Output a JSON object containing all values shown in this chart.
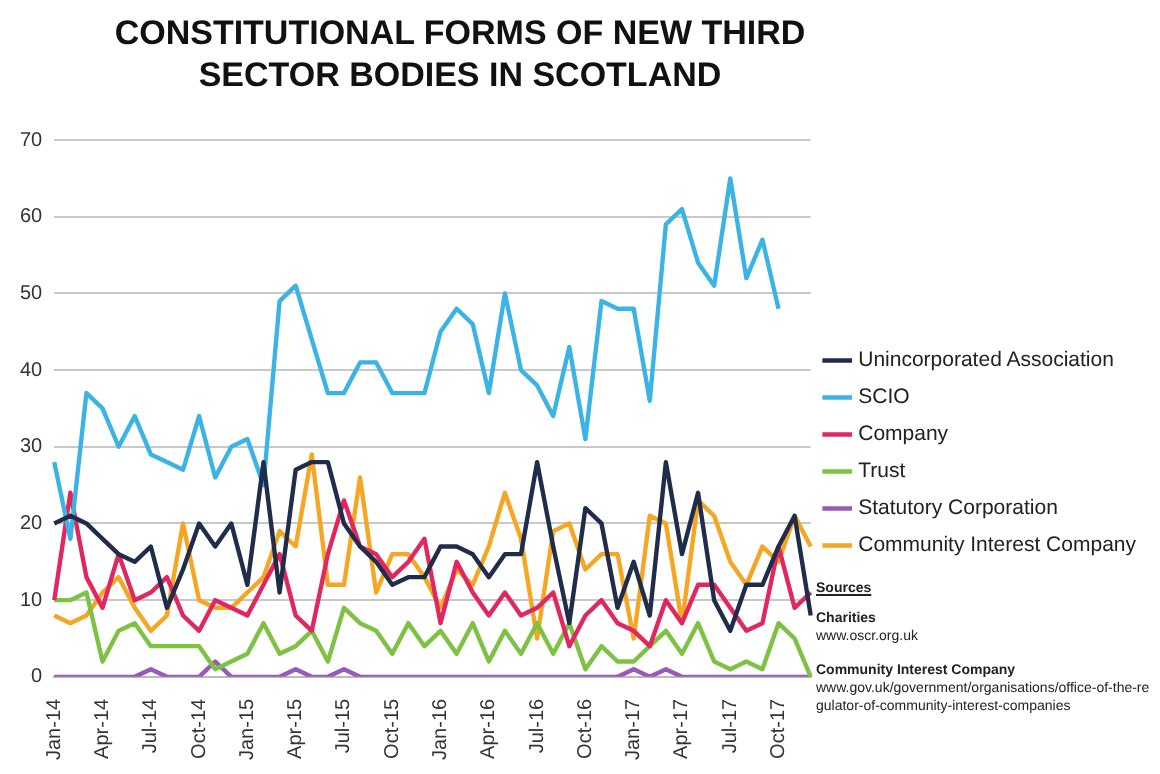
{
  "chart_data": {
    "type": "line",
    "title": "CONSTITUTIONAL FORMS OF NEW THIRD SECTOR BODIES IN SCOTLAND",
    "categories": [
      "Jan-14",
      null,
      null,
      "Apr-14",
      null,
      null,
      "Jul-14",
      null,
      null,
      "Oct-14",
      null,
      null,
      "Jan-15",
      null,
      null,
      "Apr-15",
      null,
      null,
      "Jul-15",
      null,
      null,
      "Oct-15",
      null,
      null,
      "Jan-16",
      null,
      null,
      "Apr-16",
      null,
      null,
      "Jul-16",
      null,
      null,
      "Oct-16",
      null,
      null,
      "Jan-17",
      null,
      null,
      "Apr-17",
      null,
      null,
      "Jul-17",
      null,
      null,
      "Oct-17",
      null,
      null
    ],
    "series": [
      {
        "name": "Unincorporated Association",
        "color": "#1f2d4a",
        "values": [
          20,
          21,
          20,
          18,
          16,
          15,
          17,
          9,
          14,
          20,
          17,
          20,
          12,
          28,
          11,
          27,
          28,
          28,
          20,
          17,
          15,
          12,
          13,
          13,
          17,
          17,
          16,
          13,
          16,
          16,
          28,
          17,
          7,
          22,
          20,
          9,
          15,
          8,
          28,
          16,
          24,
          10,
          6,
          12,
          12,
          17,
          21,
          8
        ]
      },
      {
        "name": "SCIO",
        "color": "#3bb4e5",
        "values": [
          28,
          18,
          37,
          35,
          30,
          34,
          29,
          28,
          27,
          34,
          26,
          30,
          31,
          25,
          49,
          51,
          44,
          37,
          37,
          41,
          41,
          37,
          37,
          37,
          45,
          48,
          46,
          37,
          50,
          40,
          38,
          34,
          43,
          31,
          49,
          48,
          48,
          36,
          59,
          61,
          54,
          51,
          65,
          52,
          57,
          48,
          null,
          null
        ]
      },
      {
        "name": "Company",
        "color": "#e0275f",
        "values": [
          10,
          24,
          13,
          9,
          16,
          10,
          11,
          13,
          8,
          6,
          10,
          9,
          8,
          12,
          16,
          8,
          6,
          16,
          23,
          17,
          16,
          13,
          15,
          18,
          7,
          15,
          11,
          8,
          11,
          8,
          9,
          11,
          4,
          8,
          10,
          7,
          6,
          4,
          10,
          7,
          12,
          12,
          9,
          6,
          7,
          17,
          9,
          11
        ]
      },
      {
        "name": "Trust",
        "color": "#7dc242",
        "values": [
          10,
          10,
          11,
          2,
          6,
          7,
          4,
          4,
          4,
          4,
          1,
          2,
          3,
          7,
          3,
          4,
          6,
          2,
          9,
          7,
          6,
          3,
          7,
          4,
          6,
          3,
          7,
          2,
          6,
          3,
          7,
          3,
          7,
          1,
          4,
          2,
          2,
          4,
          6,
          3,
          7,
          2,
          1,
          2,
          1,
          7,
          5,
          0
        ]
      },
      {
        "name": "Statutory Corporation",
        "color": "#9b59b6",
        "values": [
          0,
          0,
          0,
          0,
          0,
          0,
          1,
          0,
          0,
          0,
          2,
          0,
          0,
          0,
          0,
          1,
          0,
          0,
          1,
          0,
          0,
          0,
          0,
          0,
          0,
          0,
          0,
          0,
          0,
          0,
          0,
          0,
          0,
          0,
          0,
          0,
          1,
          0,
          1,
          0,
          0,
          0,
          0,
          0,
          0,
          0,
          0,
          0
        ]
      },
      {
        "name": "Community Interest Company",
        "color": "#f5a623",
        "values": [
          8,
          7,
          8,
          11,
          13,
          9,
          6,
          8,
          20,
          10,
          9,
          9,
          11,
          13,
          19,
          17,
          29,
          12,
          12,
          26,
          11,
          16,
          16,
          13,
          9,
          14,
          12,
          17,
          24,
          18,
          5,
          19,
          20,
          14,
          16,
          16,
          5,
          21,
          20,
          7,
          23,
          21,
          15,
          12,
          17,
          15,
          21,
          17
        ]
      }
    ],
    "ylim": [
      0,
      70
    ],
    "yticks": [
      0,
      10,
      20,
      30,
      40,
      50,
      60,
      70
    ],
    "grid": "y",
    "legend": "right",
    "marker": "none",
    "line_style": "solid",
    "annotations": [
      "Sources",
      "Charities",
      "www.oscr.org.uk",
      "Community Interest Company",
      "www.gov.uk/government/organisations/office-of-the-regulator-of-community-interest-companies"
    ]
  }
}
